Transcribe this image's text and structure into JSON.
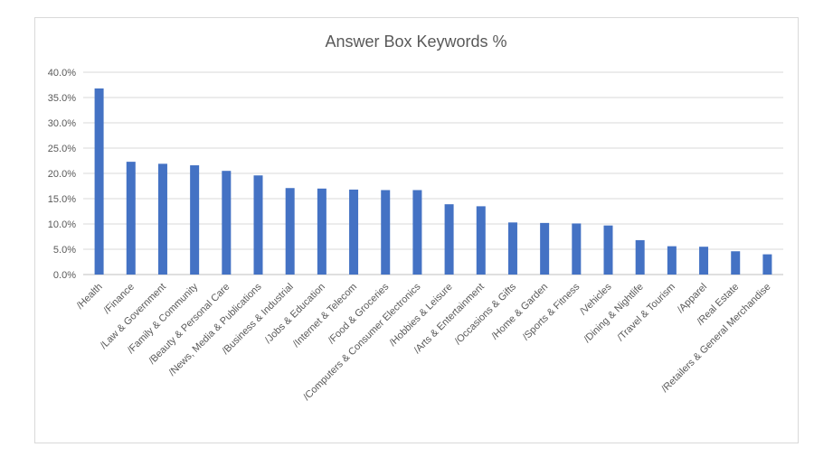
{
  "chart_data": {
    "type": "bar",
    "title": "Answer Box Keywords %",
    "xlabel": "",
    "ylabel": "",
    "ylim": [
      0,
      40
    ],
    "y_ticks": [
      "0.0%",
      "5.0%",
      "10.0%",
      "15.0%",
      "20.0%",
      "25.0%",
      "30.0%",
      "35.0%",
      "40.0%"
    ],
    "grid": true,
    "legend": "none",
    "bar_color": "#4472c4",
    "categories": [
      "/Health",
      "/Finance",
      "/Law & Government",
      "/Family & Community",
      "/Beauty & Personal Care",
      "/News, Media & Publications",
      "/Business & Industrial",
      "/Jobs & Education",
      "/Internet & Telecom",
      "/Food & Groceries",
      "/Computers & Consumer Electronics",
      "/Hobbies & Leisure",
      "/Arts & Entertainment",
      "/Occasions & Gifts",
      "/Home & Garden",
      "/Sports & Fitness",
      "/Vehicles",
      "/Dining & Nightlife",
      "/Travel & Tourism",
      "/Apparel",
      "/Real Estate",
      "/Retailers & General Merchandise"
    ],
    "values": [
      36.8,
      22.3,
      21.9,
      21.6,
      20.5,
      19.6,
      17.1,
      17.0,
      16.8,
      16.7,
      16.7,
      13.9,
      13.5,
      10.3,
      10.2,
      10.1,
      9.7,
      6.8,
      5.6,
      5.5,
      4.6,
      4.0
    ]
  }
}
